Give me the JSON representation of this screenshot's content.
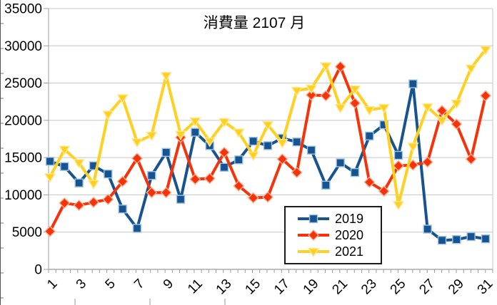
{
  "chart_data": {
    "type": "line",
    "title": "消費量 2107 月",
    "xlabel": "",
    "ylabel": "",
    "ylim": [
      0,
      35000
    ],
    "y_tick_step": 5000,
    "y_tick_labels": [
      "0",
      "5000",
      "10000",
      "15000",
      "20000",
      "25000",
      "30000",
      "35000"
    ],
    "x_categories": [
      1,
      2,
      3,
      4,
      5,
      6,
      7,
      8,
      9,
      10,
      11,
      12,
      13,
      14,
      15,
      16,
      17,
      18,
      19,
      20,
      21,
      22,
      23,
      24,
      25,
      26,
      27,
      28,
      29,
      30,
      31
    ],
    "x_tick_labels_shown": [
      "1",
      "3",
      "5",
      "7",
      "9",
      "11",
      "13",
      "15",
      "17",
      "19",
      "21",
      "23",
      "25",
      "27",
      "29",
      "31"
    ],
    "grid": "horizontal",
    "legend_position": "inside-bottom-right",
    "series": [
      {
        "name": "2019",
        "marker": "square",
        "color": "#17538F",
        "edge_color": "#9DC3E6",
        "values": [
          14500,
          13800,
          11600,
          13900,
          12800,
          8100,
          5500,
          12600,
          15700,
          9400,
          18400,
          16600,
          13700,
          14700,
          17200,
          16600,
          17600,
          17100,
          16000,
          11300,
          14300,
          13000,
          17900,
          19400,
          15300,
          24900,
          5400,
          3900,
          4000,
          4400,
          4100
        ]
      },
      {
        "name": "2020",
        "marker": "diamond",
        "color": "#F5330A",
        "edge_color": "#FBAE8E",
        "values": [
          5100,
          8900,
          8600,
          9000,
          9400,
          11800,
          14900,
          10300,
          10300,
          17700,
          12100,
          12200,
          15700,
          11200,
          9600,
          9700,
          14800,
          13000,
          23400,
          23300,
          27200,
          22300,
          11700,
          10500,
          13900,
          14000,
          14400,
          21300,
          19500,
          14800,
          23300
        ]
      },
      {
        "name": "2021",
        "marker": "triangle-down",
        "color": "#FFD01F",
        "edge_color": "#FFE896",
        "values": [
          12400,
          16100,
          14300,
          11500,
          20800,
          23000,
          17100,
          18000,
          26000,
          18100,
          19900,
          17200,
          19800,
          18400,
          15300,
          19400,
          17000,
          24000,
          24300,
          27300,
          21700,
          24200,
          21400,
          21700,
          8700,
          16500,
          21800,
          20000,
          22300,
          27000,
          29500
        ]
      }
    ],
    "colors": {
      "gridline": "#C6C6C6",
      "axis": "#9C9C9C",
      "text": "#000000",
      "background": "#FFFFFF"
    }
  }
}
